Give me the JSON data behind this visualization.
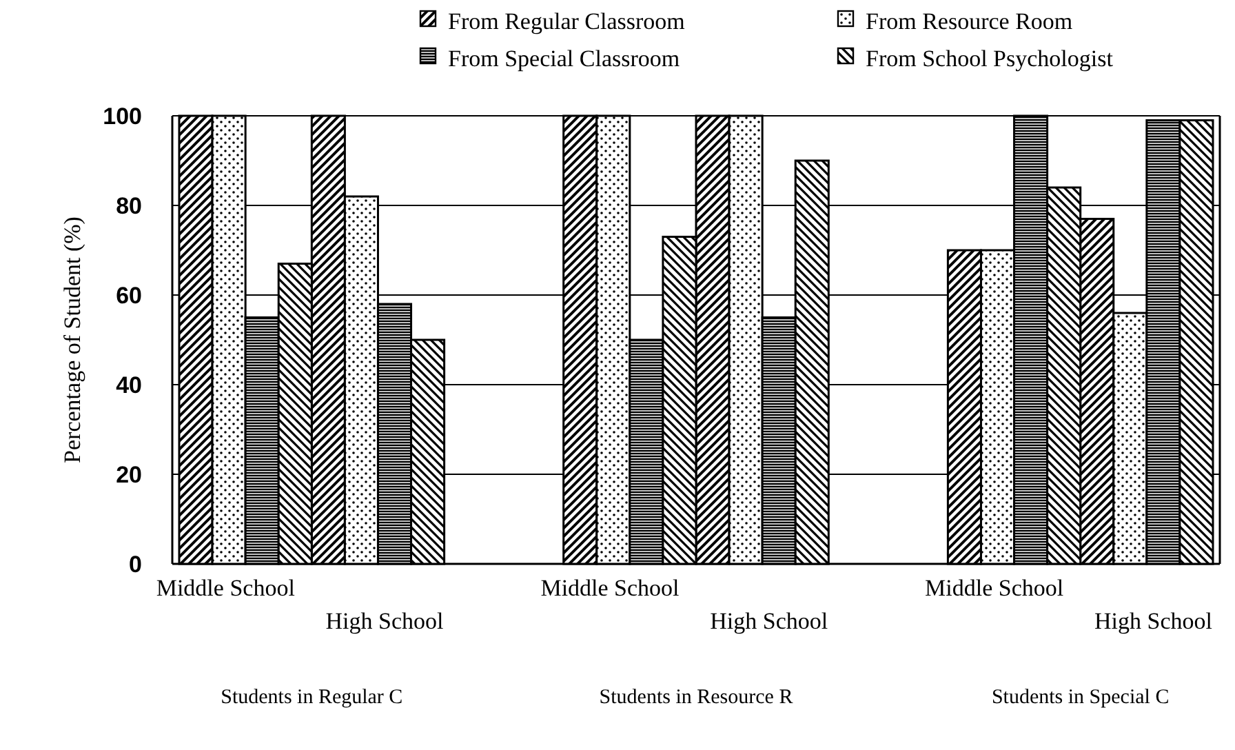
{
  "chart_data": {
    "type": "bar",
    "ylabel": "Percentage of Student (%)",
    "categories": [
      "Middle School",
      "High School",
      "Middle School",
      "High School",
      "Middle School",
      "High School"
    ],
    "series": [
      {
        "name": "From Regular Classroom",
        "color": "#000000",
        "values": [
          100,
          100,
          100,
          100,
          70,
          77
        ]
      },
      {
        "name": "From Resource Room",
        "color": "#000000",
        "values": [
          100,
          82,
          100,
          100,
          70,
          56
        ]
      },
      {
        "name": "From Special Classroom",
        "color": "#000000",
        "values": [
          55,
          58,
          50,
          55,
          100,
          99
        ]
      },
      {
        "name": "From School Psychologist",
        "color": "#000000",
        "values": [
          67,
          50,
          73,
          90,
          84,
          99
        ]
      }
    ],
    "ylim": [
      0,
      100
    ],
    "yticks": [
      0,
      20,
      40,
      60,
      80,
      100
    ],
    "grid": "y",
    "legend": "top",
    "annotations": [
      "Students in Regular C",
      "Students in Resource R",
      "Students in Special C"
    ]
  }
}
